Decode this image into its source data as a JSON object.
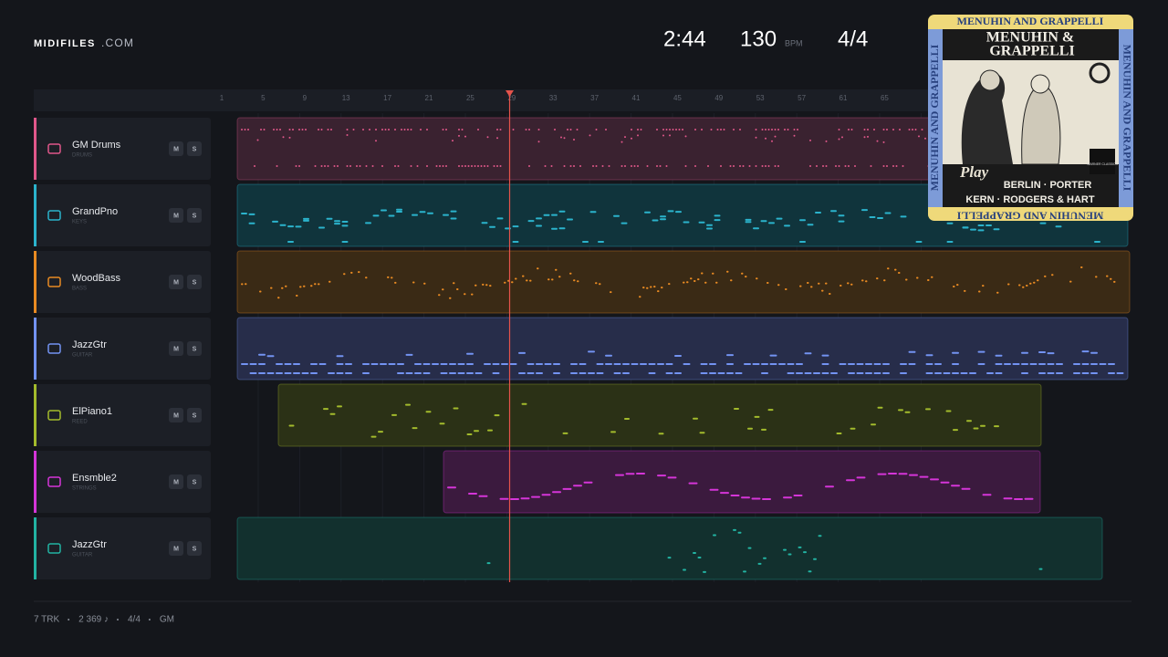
{
  "header": {
    "brand": "MIDIFILES",
    "brand_suffix": ".COM",
    "time": "2:44",
    "tempo": "130",
    "tempo_unit": "BPM",
    "meter": "4/4"
  },
  "ruler": [
    "1",
    "5",
    "9",
    "13",
    "17",
    "21",
    "25",
    "29",
    "33",
    "37",
    "41",
    "45",
    "49",
    "53",
    "57",
    "61",
    "65"
  ],
  "controls": {
    "mute": "M",
    "solo": "S"
  },
  "tracks": [
    {
      "name": "GM Drums",
      "category": "DRUMS"
    },
    {
      "name": "GrandPno",
      "category": "KEYS"
    },
    {
      "name": "WoodBass",
      "category": "BASS"
    },
    {
      "name": "JazzGtr",
      "category": "GUITAR"
    },
    {
      "name": "ElPiano1",
      "category": "REED"
    },
    {
      "name": "Ensmble2",
      "category": "STRINGS"
    },
    {
      "name": "JazzGtr",
      "category": "GUITAR"
    }
  ],
  "album": {
    "border": "MENUHIN AND GRAPPELLI",
    "title_1": "MENUHIN &",
    "title_2": "GRAPPELLI",
    "script": "Play",
    "line_1": "BERLIN · PORTER",
    "line_2": "KERN · RODGERS & HART",
    "label": "WARNER CLASSICS"
  },
  "footer": [
    "7 TRK",
    "2 369 ♪",
    "4/4",
    "GM"
  ]
}
